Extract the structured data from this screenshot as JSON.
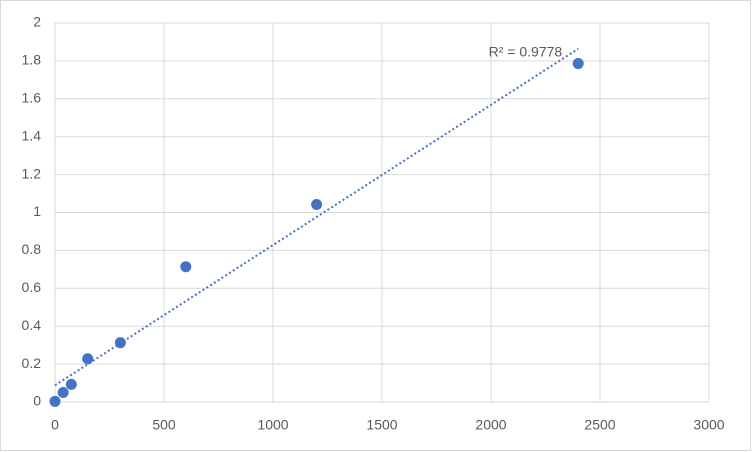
{
  "chart_data": {
    "type": "scatter",
    "x": [
      0,
      37.5,
      75,
      150,
      300,
      600,
      1200,
      2400
    ],
    "values": [
      0.003,
      0.05,
      0.093,
      0.228,
      0.313,
      0.714,
      1.042,
      1.786
    ],
    "color": "#4472c4",
    "trendline": "linear",
    "annotation": "R² = 0.9778",
    "xlim": [
      0,
      3000
    ],
    "xticks": [
      0,
      500,
      1000,
      1500,
      2000,
      2500,
      3000
    ],
    "ylim": [
      0,
      2
    ],
    "yticks": [
      0,
      0.2,
      0.4,
      0.6,
      0.8,
      1,
      1.2,
      1.4,
      1.6,
      1.8,
      2
    ],
    "grid": true
  }
}
